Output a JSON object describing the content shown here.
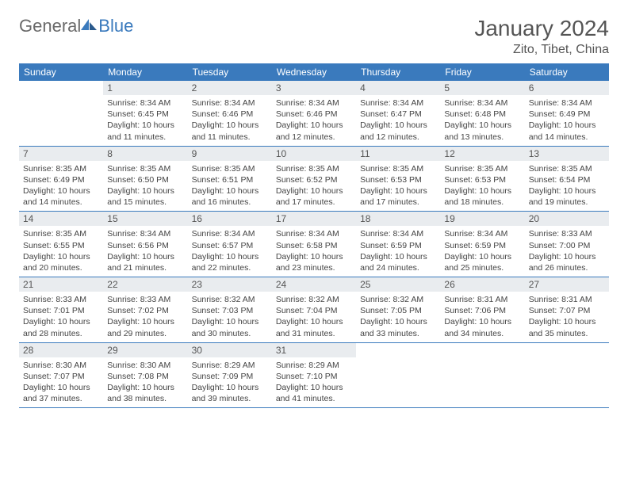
{
  "brand": {
    "general": "General",
    "blue": "Blue"
  },
  "title": "January 2024",
  "location": "Zito, Tibet, China",
  "colors": {
    "header_bg": "#3a7abd",
    "daynum_bg": "#e9ecef",
    "border": "#3a7abd",
    "text": "#444444",
    "title_text": "#555555"
  },
  "weekdays": [
    "Sunday",
    "Monday",
    "Tuesday",
    "Wednesday",
    "Thursday",
    "Friday",
    "Saturday"
  ],
  "weeks": [
    [
      null,
      {
        "n": "1",
        "sr": "Sunrise: 8:34 AM",
        "ss": "Sunset: 6:45 PM",
        "dl": "Daylight: 10 hours and 11 minutes."
      },
      {
        "n": "2",
        "sr": "Sunrise: 8:34 AM",
        "ss": "Sunset: 6:46 PM",
        "dl": "Daylight: 10 hours and 11 minutes."
      },
      {
        "n": "3",
        "sr": "Sunrise: 8:34 AM",
        "ss": "Sunset: 6:46 PM",
        "dl": "Daylight: 10 hours and 12 minutes."
      },
      {
        "n": "4",
        "sr": "Sunrise: 8:34 AM",
        "ss": "Sunset: 6:47 PM",
        "dl": "Daylight: 10 hours and 12 minutes."
      },
      {
        "n": "5",
        "sr": "Sunrise: 8:34 AM",
        "ss": "Sunset: 6:48 PM",
        "dl": "Daylight: 10 hours and 13 minutes."
      },
      {
        "n": "6",
        "sr": "Sunrise: 8:34 AM",
        "ss": "Sunset: 6:49 PM",
        "dl": "Daylight: 10 hours and 14 minutes."
      }
    ],
    [
      {
        "n": "7",
        "sr": "Sunrise: 8:35 AM",
        "ss": "Sunset: 6:49 PM",
        "dl": "Daylight: 10 hours and 14 minutes."
      },
      {
        "n": "8",
        "sr": "Sunrise: 8:35 AM",
        "ss": "Sunset: 6:50 PM",
        "dl": "Daylight: 10 hours and 15 minutes."
      },
      {
        "n": "9",
        "sr": "Sunrise: 8:35 AM",
        "ss": "Sunset: 6:51 PM",
        "dl": "Daylight: 10 hours and 16 minutes."
      },
      {
        "n": "10",
        "sr": "Sunrise: 8:35 AM",
        "ss": "Sunset: 6:52 PM",
        "dl": "Daylight: 10 hours and 17 minutes."
      },
      {
        "n": "11",
        "sr": "Sunrise: 8:35 AM",
        "ss": "Sunset: 6:53 PM",
        "dl": "Daylight: 10 hours and 17 minutes."
      },
      {
        "n": "12",
        "sr": "Sunrise: 8:35 AM",
        "ss": "Sunset: 6:53 PM",
        "dl": "Daylight: 10 hours and 18 minutes."
      },
      {
        "n": "13",
        "sr": "Sunrise: 8:35 AM",
        "ss": "Sunset: 6:54 PM",
        "dl": "Daylight: 10 hours and 19 minutes."
      }
    ],
    [
      {
        "n": "14",
        "sr": "Sunrise: 8:35 AM",
        "ss": "Sunset: 6:55 PM",
        "dl": "Daylight: 10 hours and 20 minutes."
      },
      {
        "n": "15",
        "sr": "Sunrise: 8:34 AM",
        "ss": "Sunset: 6:56 PM",
        "dl": "Daylight: 10 hours and 21 minutes."
      },
      {
        "n": "16",
        "sr": "Sunrise: 8:34 AM",
        "ss": "Sunset: 6:57 PM",
        "dl": "Daylight: 10 hours and 22 minutes."
      },
      {
        "n": "17",
        "sr": "Sunrise: 8:34 AM",
        "ss": "Sunset: 6:58 PM",
        "dl": "Daylight: 10 hours and 23 minutes."
      },
      {
        "n": "18",
        "sr": "Sunrise: 8:34 AM",
        "ss": "Sunset: 6:59 PM",
        "dl": "Daylight: 10 hours and 24 minutes."
      },
      {
        "n": "19",
        "sr": "Sunrise: 8:34 AM",
        "ss": "Sunset: 6:59 PM",
        "dl": "Daylight: 10 hours and 25 minutes."
      },
      {
        "n": "20",
        "sr": "Sunrise: 8:33 AM",
        "ss": "Sunset: 7:00 PM",
        "dl": "Daylight: 10 hours and 26 minutes."
      }
    ],
    [
      {
        "n": "21",
        "sr": "Sunrise: 8:33 AM",
        "ss": "Sunset: 7:01 PM",
        "dl": "Daylight: 10 hours and 28 minutes."
      },
      {
        "n": "22",
        "sr": "Sunrise: 8:33 AM",
        "ss": "Sunset: 7:02 PM",
        "dl": "Daylight: 10 hours and 29 minutes."
      },
      {
        "n": "23",
        "sr": "Sunrise: 8:32 AM",
        "ss": "Sunset: 7:03 PM",
        "dl": "Daylight: 10 hours and 30 minutes."
      },
      {
        "n": "24",
        "sr": "Sunrise: 8:32 AM",
        "ss": "Sunset: 7:04 PM",
        "dl": "Daylight: 10 hours and 31 minutes."
      },
      {
        "n": "25",
        "sr": "Sunrise: 8:32 AM",
        "ss": "Sunset: 7:05 PM",
        "dl": "Daylight: 10 hours and 33 minutes."
      },
      {
        "n": "26",
        "sr": "Sunrise: 8:31 AM",
        "ss": "Sunset: 7:06 PM",
        "dl": "Daylight: 10 hours and 34 minutes."
      },
      {
        "n": "27",
        "sr": "Sunrise: 8:31 AM",
        "ss": "Sunset: 7:07 PM",
        "dl": "Daylight: 10 hours and 35 minutes."
      }
    ],
    [
      {
        "n": "28",
        "sr": "Sunrise: 8:30 AM",
        "ss": "Sunset: 7:07 PM",
        "dl": "Daylight: 10 hours and 37 minutes."
      },
      {
        "n": "29",
        "sr": "Sunrise: 8:30 AM",
        "ss": "Sunset: 7:08 PM",
        "dl": "Daylight: 10 hours and 38 minutes."
      },
      {
        "n": "30",
        "sr": "Sunrise: 8:29 AM",
        "ss": "Sunset: 7:09 PM",
        "dl": "Daylight: 10 hours and 39 minutes."
      },
      {
        "n": "31",
        "sr": "Sunrise: 8:29 AM",
        "ss": "Sunset: 7:10 PM",
        "dl": "Daylight: 10 hours and 41 minutes."
      },
      null,
      null,
      null
    ]
  ]
}
